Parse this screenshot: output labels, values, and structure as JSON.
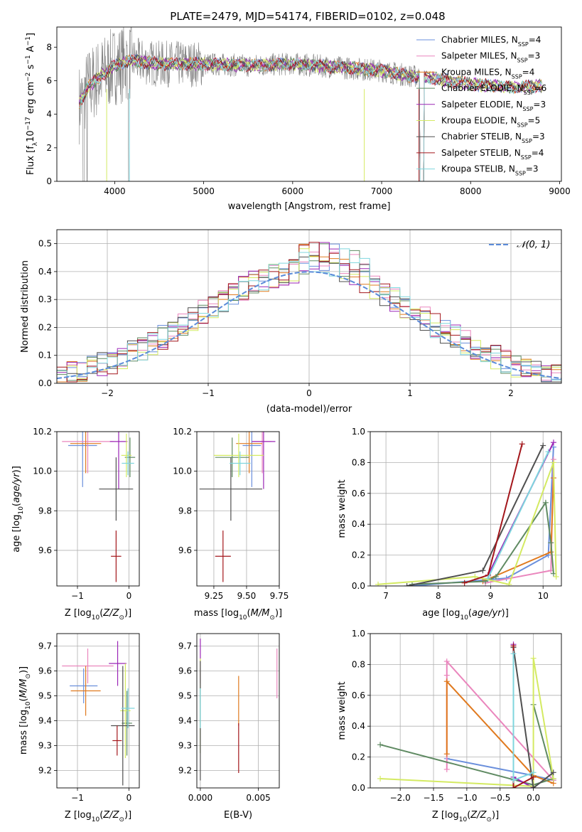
{
  "figure": {
    "title": "PLATE=2479, MJD=54174, FIBERID=0102, z=0.048"
  },
  "colors": {
    "Chabrier MILES": "#6a8fdc",
    "Salpeter MILES": "#ea86bd",
    "Kroupa MILES": "#e07a1f",
    "Chabrier ELODIE": "#5f8a62",
    "Salpeter ELODIE": "#9b26b6",
    "Kroupa ELODIE": "#d4ea62",
    "Chabrier STELIB": "#4f4f4f",
    "Salpeter STELIB": "#a3161b",
    "Kroupa STELIB": "#7fd6de",
    "data": "#808080",
    "normal": "#5b8bd9"
  },
  "chart_data": [
    {
      "id": "spectrum",
      "type": "line",
      "xlabel": "wavelength [Angstrom, rest frame]",
      "ylabel": "Flux [f_λ10^-17 erg cm^-2 s^-1 A^-1]",
      "xlim": [
        3350,
        9020
      ],
      "ylim": [
        0,
        9.2
      ],
      "xticks": [
        4000,
        5000,
        6000,
        7000,
        8000,
        9000
      ],
      "yticks": [
        0,
        2,
        4,
        6,
        8
      ],
      "grid": false,
      "legend_position": "right",
      "legend": [
        {
          "model": "Chabrier MILES",
          "nssp": "4"
        },
        {
          "model": "Salpeter MILES",
          "nssp": "3"
        },
        {
          "model": "Kroupa MILES",
          "nssp": "4"
        },
        {
          "model": "Chabrier ELODIE",
          "nssp": "6"
        },
        {
          "model": "Salpeter ELODIE",
          "nssp": "3"
        },
        {
          "model": "Kroupa ELODIE",
          "nssp": "5"
        },
        {
          "model": "Chabrier STELIB",
          "nssp": "3"
        },
        {
          "model": "Salpeter STELIB",
          "nssp": "4"
        },
        {
          "model": "Kroupa STELIB",
          "nssp": "3"
        }
      ],
      "model_continuum": {
        "x": [
          3600,
          3700,
          3800,
          3900,
          4000,
          4200,
          4500,
          5000,
          5500,
          6000,
          6500,
          7000,
          7300,
          7500,
          8000,
          8500,
          8800
        ],
        "y": [
          4.6,
          5.6,
          6.1,
          6.5,
          6.9,
          7.2,
          7.0,
          7.0,
          6.9,
          7.0,
          6.8,
          6.6,
          6.3,
          6.2,
          5.8,
          5.6,
          5.7
        ]
      },
      "data_range": [
        3600,
        7430
      ]
    },
    {
      "id": "residuals",
      "type": "histogram",
      "xlabel": "(data-model)/error",
      "ylabel": "Normed distribution",
      "xlim": [
        -2.5,
        2.5
      ],
      "ylim": [
        0,
        0.55
      ],
      "xticks": [
        -2,
        -1,
        0,
        1,
        2
      ],
      "yticks": [
        0.0,
        0.1,
        0.2,
        0.3,
        0.4,
        0.5
      ],
      "grid": true,
      "legend_position": "top-right",
      "legend_label": "𝒩(0, 1)",
      "bin_width": 0.1,
      "x_start": -2.5
    },
    {
      "id": "z-age",
      "type": "scatter",
      "xlabel": "Z [log10(Z/Z⊙)]",
      "ylabel": "age [log10(age/yr)]",
      "xlim": [
        -1.4,
        0.2
      ],
      "ylim": [
        9.42,
        10.2
      ],
      "xticks": [
        -1,
        0
      ],
      "yticks": [
        9.6,
        9.8,
        10.0,
        10.2
      ],
      "grid": true,
      "points": [
        {
          "model": "Chabrier MILES",
          "x": -0.9,
          "xerr": 0.28,
          "y": 10.13,
          "yerr": 0.21
        },
        {
          "model": "Salpeter MILES",
          "x": -0.8,
          "xerr": 0.5,
          "y": 10.15,
          "yerr": 0.16
        },
        {
          "model": "Kroupa MILES",
          "x": -0.84,
          "xerr": 0.3,
          "y": 10.14,
          "yerr": 0.15
        },
        {
          "model": "Chabrier ELODIE",
          "x": 0.02,
          "xerr": 0.1,
          "y": 10.07,
          "yerr": 0.1
        },
        {
          "model": "Salpeter ELODIE",
          "x": -0.2,
          "xerr": 0.17,
          "y": 10.15,
          "yerr": 0.24
        },
        {
          "model": "Kroupa ELODIE",
          "x": -0.05,
          "xerr": 0.1,
          "y": 10.08,
          "yerr": 0.11
        },
        {
          "model": "Chabrier STELIB",
          "x": -0.25,
          "xerr": 0.33,
          "y": 9.91,
          "yerr": 0.16
        },
        {
          "model": "Salpeter STELIB",
          "x": -0.25,
          "xerr": 0.1,
          "y": 9.57,
          "yerr": 0.13
        },
        {
          "model": "Kroupa STELIB",
          "x": -0.02,
          "xerr": 0.12,
          "y": 10.04,
          "yerr": 0.06
        }
      ]
    },
    {
      "id": "mass-age",
      "type": "scatter",
      "xlabel": "mass [log10(M/M⊙)]",
      "ylabel": "",
      "xlim": [
        9.12,
        9.75
      ],
      "ylim": [
        9.42,
        10.2
      ],
      "xticks": [
        9.25,
        9.5,
        9.75
      ],
      "yticks": [
        9.6,
        9.8,
        10.0,
        10.2
      ],
      "grid": true,
      "points": [
        {
          "model": "Chabrier MILES",
          "x": 9.54,
          "xerr": 0.07,
          "y": 10.13,
          "yerr": 0.21
        },
        {
          "model": "Salpeter MILES",
          "x": 9.62,
          "xerr": 0.07,
          "y": 10.15,
          "yerr": 0.16
        },
        {
          "model": "Kroupa MILES",
          "x": 9.52,
          "xerr": 0.1,
          "y": 10.14,
          "yerr": 0.15
        },
        {
          "model": "Chabrier ELODIE",
          "x": 9.39,
          "xerr": 0.13,
          "y": 10.07,
          "yerr": 0.1
        },
        {
          "model": "Salpeter ELODIE",
          "x": 9.63,
          "xerr": 0.09,
          "y": 10.15,
          "yerr": 0.24
        },
        {
          "model": "Kroupa ELODIE",
          "x": 9.44,
          "xerr": 0.19,
          "y": 10.08,
          "yerr": 0.11
        },
        {
          "model": "Chabrier STELIB",
          "x": 9.38,
          "xerr": 0.24,
          "y": 9.91,
          "yerr": 0.16
        },
        {
          "model": "Salpeter STELIB",
          "x": 9.32,
          "xerr": 0.06,
          "y": 9.57,
          "yerr": 0.13
        },
        {
          "model": "Kroupa STELIB",
          "x": 9.45,
          "xerr": 0.08,
          "y": 10.04,
          "yerr": 0.06
        }
      ]
    },
    {
      "id": "age-weight",
      "type": "line",
      "xlabel": "age [log10(age/yr)]",
      "ylabel": "mass weight",
      "xlim": [
        6.7,
        10.35
      ],
      "ylim": [
        0,
        1.0
      ],
      "xticks": [
        7,
        8,
        9,
        10
      ],
      "yticks": [
        0.0,
        0.2,
        0.4,
        0.6,
        0.8,
        1.0
      ],
      "grid": true,
      "series": [
        {
          "model": "Chabrier MILES",
          "x": [
            7.5,
            9.3,
            10.1,
            10.2
          ],
          "y": [
            0.0,
            0.05,
            0.2,
            0.9
          ]
        },
        {
          "model": "Salpeter MILES",
          "x": [
            8.9,
            10.15,
            10.2
          ],
          "y": [
            0.02,
            0.1,
            0.82
          ]
        },
        {
          "model": "Kroupa MILES",
          "x": [
            8.85,
            10.15,
            10.2
          ],
          "y": [
            0.03,
            0.22,
            0.7
          ]
        },
        {
          "model": "Chabrier ELODIE",
          "x": [
            7.5,
            8.9,
            9.1,
            10.05,
            10.15,
            10.2
          ],
          "y": [
            0.01,
            0.03,
            0.06,
            0.54,
            0.28,
            0.08
          ]
        },
        {
          "model": "Salpeter ELODIE",
          "x": [
            8.95,
            10.2
          ],
          "y": [
            0.07,
            0.93
          ]
        },
        {
          "model": "Kroupa ELODIE",
          "x": [
            6.85,
            8.7,
            9.35,
            10.2,
            10.25
          ],
          "y": [
            0.01,
            0.06,
            0.01,
            0.8,
            0.06
          ]
        },
        {
          "model": "Chabrier STELIB",
          "x": [
            7.4,
            8.85,
            10.0
          ],
          "y": [
            0.0,
            0.1,
            0.91
          ]
        },
        {
          "model": "Salpeter STELIB",
          "x": [
            8.5,
            8.95,
            9.6
          ],
          "y": [
            0.02,
            0.07,
            0.92
          ]
        },
        {
          "model": "Kroupa STELIB",
          "x": [
            8.95,
            10.1
          ],
          "y": [
            0.05,
            0.87
          ]
        }
      ]
    },
    {
      "id": "z-mass",
      "type": "scatter",
      "xlabel": "Z [log10(Z/Z⊙)]",
      "ylabel": "mass [log10(M/M⊙)]",
      "xlim": [
        -1.4,
        0.2
      ],
      "ylim": [
        9.13,
        9.75
      ],
      "xticks": [
        -1,
        0
      ],
      "yticks": [
        9.2,
        9.3,
        9.4,
        9.5,
        9.6,
        9.7
      ],
      "grid": true,
      "points": [
        {
          "model": "Chabrier MILES",
          "x": -0.88,
          "xerr": 0.27,
          "y": 9.54,
          "yerr": 0.07
        },
        {
          "model": "Salpeter MILES",
          "x": -0.8,
          "xerr": 0.5,
          "y": 9.62,
          "yerr": 0.07
        },
        {
          "model": "Kroupa MILES",
          "x": -0.84,
          "xerr": 0.29,
          "y": 9.52,
          "yerr": 0.1
        },
        {
          "model": "Chabrier ELODIE",
          "x": -0.04,
          "xerr": 0.1,
          "y": 9.39,
          "yerr": 0.13
        },
        {
          "model": "Salpeter ELODIE",
          "x": -0.22,
          "xerr": 0.17,
          "y": 9.63,
          "yerr": 0.09
        },
        {
          "model": "Kroupa ELODIE",
          "x": -0.07,
          "xerr": 0.1,
          "y": 9.44,
          "yerr": 0.19
        },
        {
          "model": "Chabrier STELIB",
          "x": -0.12,
          "xerr": 0.23,
          "y": 9.38,
          "yerr": 0.24
        },
        {
          "model": "Salpeter STELIB",
          "x": -0.23,
          "xerr": 0.09,
          "y": 9.32,
          "yerr": 0.06
        },
        {
          "model": "Kroupa STELIB",
          "x": -0.02,
          "xerr": 0.13,
          "y": 9.45,
          "yerr": 0.08
        }
      ]
    },
    {
      "id": "ebv-mass",
      "type": "scatter",
      "xlabel": "E(B-V)",
      "ylabel": "",
      "xlim": [
        -0.0003,
        0.0068
      ],
      "ylim": [
        9.13,
        9.75
      ],
      "xticks": [
        0.0,
        0.005
      ],
      "xtick_labels": [
        "0.000",
        "0.005"
      ],
      "yticks": [
        9.2,
        9.3,
        9.4,
        9.5,
        9.6,
        9.7
      ],
      "grid": true,
      "points": [
        {
          "model": "Chabrier MILES",
          "x": 0.0,
          "y": 9.54,
          "yerr": 0.07
        },
        {
          "model": "Salpeter MILES",
          "x": 0.0066,
          "y": 9.59,
          "yerr": 0.1
        },
        {
          "model": "Kroupa MILES",
          "x": 0.0033,
          "y": 9.48,
          "yerr": 0.1
        },
        {
          "model": "Chabrier ELODIE",
          "x": 0.0,
          "y": 9.4,
          "yerr": 0.13
        },
        {
          "model": "Salpeter ELODIE",
          "x": 0.0,
          "y": 9.64,
          "yerr": 0.09
        },
        {
          "model": "Kroupa ELODIE",
          "x": 0.0,
          "y": 9.46,
          "yerr": 0.19
        },
        {
          "model": "Chabrier STELIB",
          "x": 0.0,
          "y": 9.4,
          "yerr": 0.24
        },
        {
          "model": "Salpeter STELIB",
          "x": 0.0033,
          "y": 9.29,
          "yerr": 0.1
        },
        {
          "model": "Kroupa STELIB",
          "x": 0.0,
          "y": 9.45,
          "yerr": 0.08
        }
      ]
    },
    {
      "id": "z-weight",
      "type": "line",
      "xlabel": "Z [log10(Z/Z⊙)]",
      "ylabel": "mass weight",
      "xlim": [
        -2.45,
        0.42
      ],
      "ylim": [
        0,
        1.0
      ],
      "xticks": [
        -2.0,
        -1.5,
        -1.0,
        -0.5,
        0.0
      ],
      "yticks": [
        0.0,
        0.2,
        0.4,
        0.6,
        0.8,
        1.0
      ],
      "grid": true,
      "series": [
        {
          "model": "Chabrier MILES",
          "x": [
            -1.3,
            0.0,
            0.3
          ],
          "y": [
            0.19,
            0.08,
            0.05
          ]
        },
        {
          "model": "Salpeter MILES",
          "x": [
            -1.3,
            -1.3,
            -1.3,
            0.3
          ],
          "y": [
            0.12,
            0.73,
            0.82,
            0.05
          ]
        },
        {
          "model": "Kroupa MILES",
          "x": [
            -1.3,
            -1.3,
            0.0,
            0.3
          ],
          "y": [
            0.22,
            0.69,
            0.08,
            0.03
          ]
        },
        {
          "model": "Chabrier ELODIE",
          "x": [
            -2.3,
            0.0,
            0.3,
            0.0
          ],
          "y": [
            0.28,
            0.02,
            0.06,
            0.54
          ]
        },
        {
          "model": "Salpeter ELODIE",
          "x": [
            -0.3,
            -0.3,
            0.0
          ],
          "y": [
            0.93,
            0.07,
            0.0
          ]
        },
        {
          "model": "Kroupa ELODIE",
          "x": [
            -2.3,
            0.0,
            0.0,
            0.3
          ],
          "y": [
            0.06,
            0.01,
            0.84,
            0.06
          ]
        },
        {
          "model": "Chabrier STELIB",
          "x": [
            -0.3,
            0.0,
            0.3
          ],
          "y": [
            0.91,
            0.0,
            0.1
          ]
        },
        {
          "model": "Salpeter STELIB",
          "x": [
            -0.3,
            -0.3,
            0.0
          ],
          "y": [
            0.92,
            0.0,
            0.07
          ]
        },
        {
          "model": "Kroupa STELIB",
          "x": [
            -0.3,
            -0.3,
            0.0
          ],
          "y": [
            0.87,
            0.05,
            0.1
          ]
        }
      ]
    }
  ]
}
